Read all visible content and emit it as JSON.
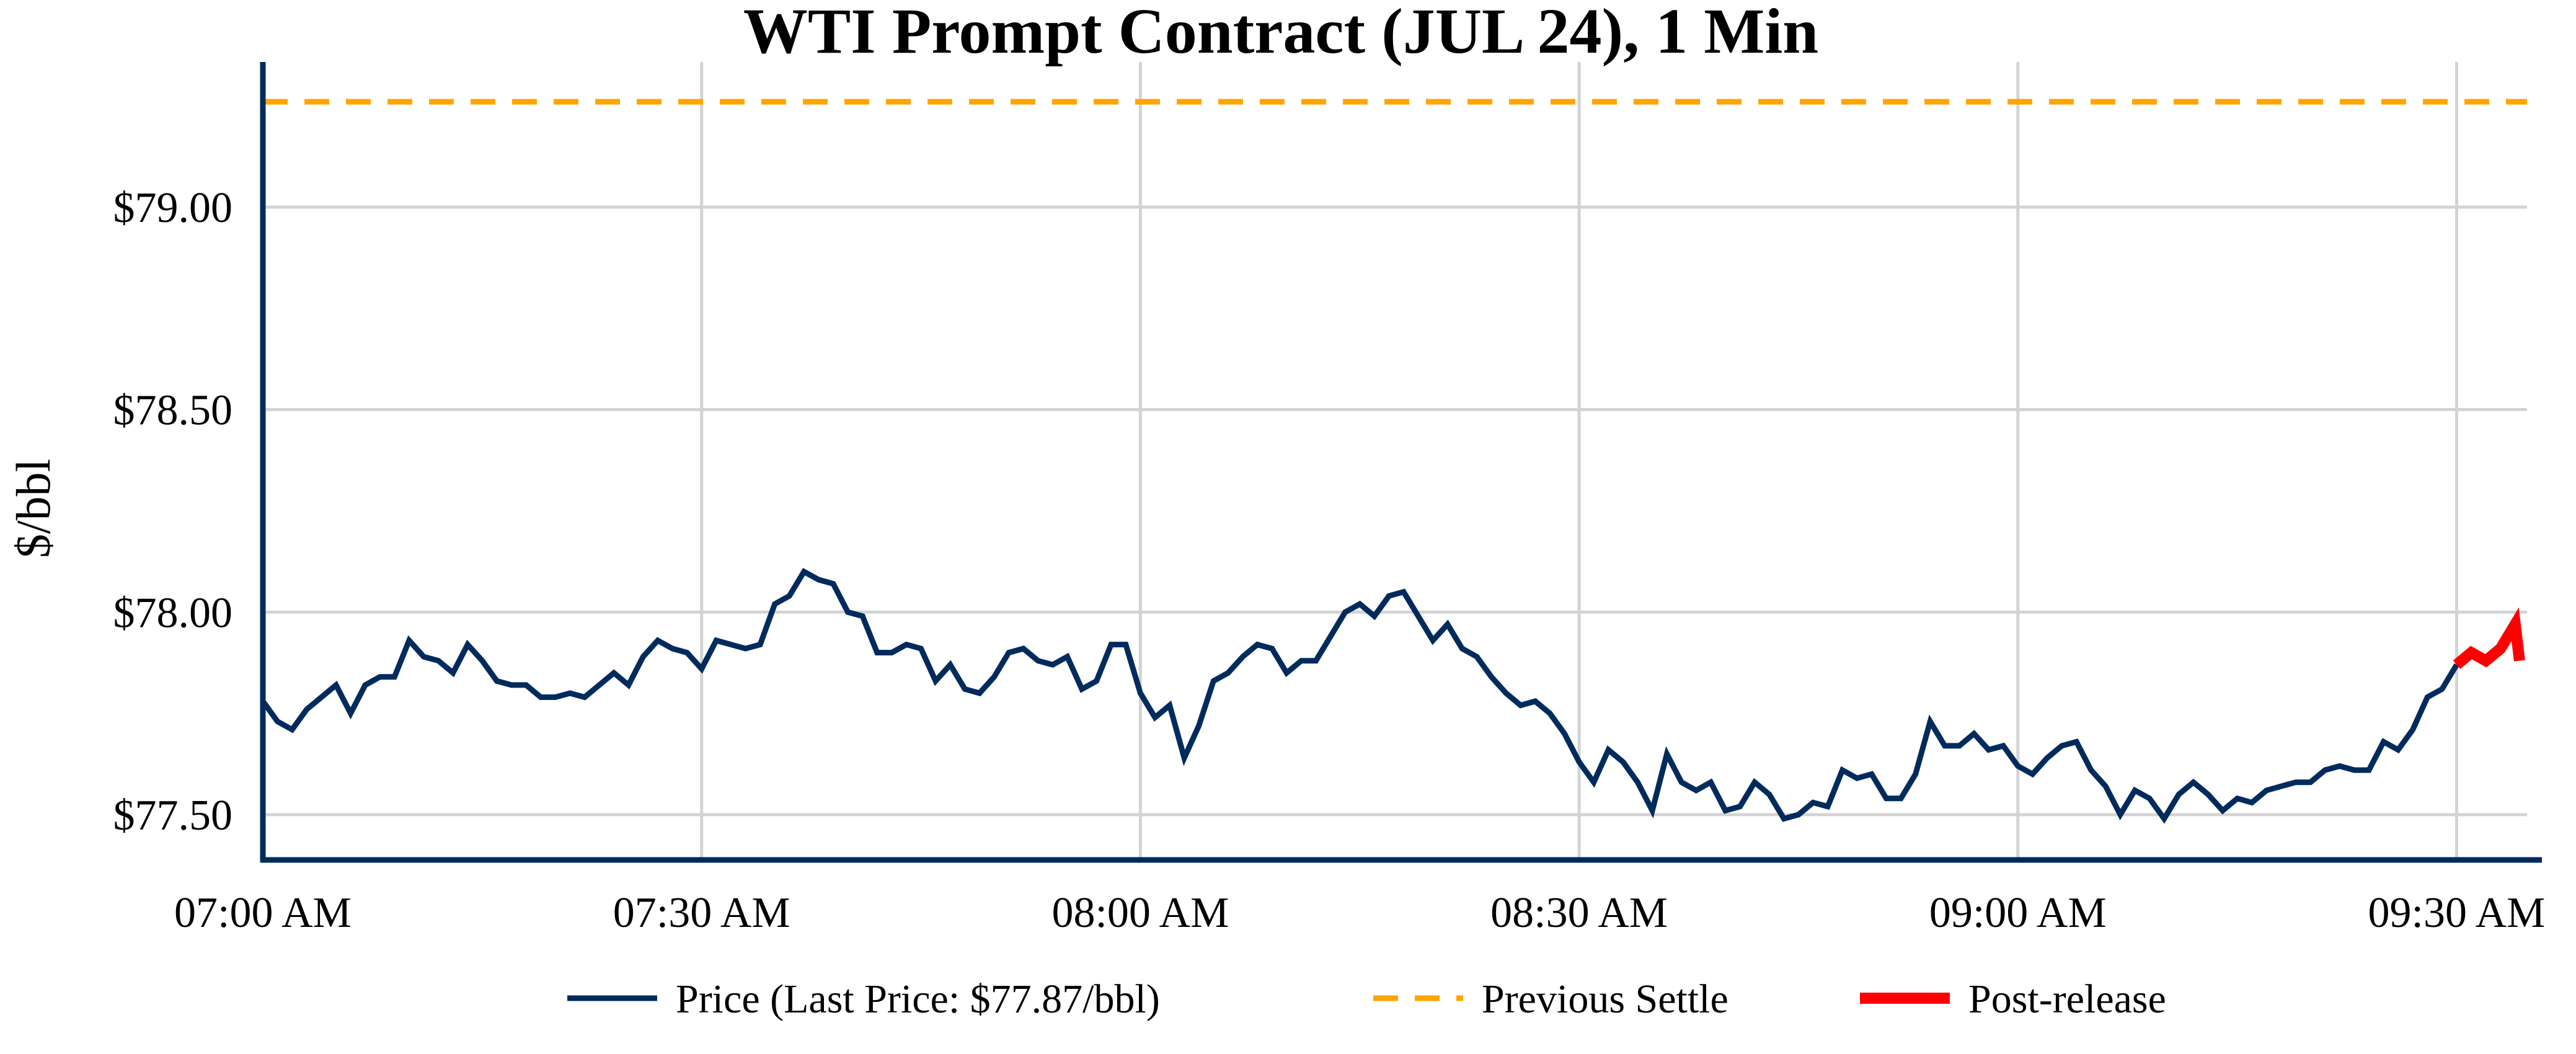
{
  "chart_data": {
    "type": "line",
    "title": "WTI Prompt Contract (JUL 24), 1 Min",
    "xlabel": "",
    "ylabel": "$/bbl",
    "ylim": [
      77.39,
      79.35
    ],
    "xlim_minutes_from_start": [
      0,
      154.3
    ],
    "grid": true,
    "legend_position": "bottom",
    "x_ticks": [
      {
        "label": "07:00 AM",
        "minute": 0
      },
      {
        "label": "07:30 AM",
        "minute": 30
      },
      {
        "label": "08:00 AM",
        "minute": 60
      },
      {
        "label": "08:30 AM",
        "minute": 90
      },
      {
        "label": "09:00 AM",
        "minute": 120
      },
      {
        "label": "09:30 AM",
        "minute": 150
      }
    ],
    "y_ticks": [
      {
        "label": "$77.50",
        "value": 77.5
      },
      {
        "label": "$78.00",
        "value": 78.0
      },
      {
        "label": "$78.50",
        "value": 78.5
      },
      {
        "label": "$79.00",
        "value": 79.0
      }
    ],
    "series": [
      {
        "name": "Price (Last Price: $77.87/bbl)",
        "color": "#002b5c",
        "style": "solid",
        "start_minute": 0,
        "interval_minutes": 1,
        "values": [
          77.78,
          77.73,
          77.71,
          77.76,
          77.79,
          77.82,
          77.75,
          77.82,
          77.84,
          77.84,
          77.93,
          77.89,
          77.88,
          77.85,
          77.92,
          77.88,
          77.83,
          77.82,
          77.82,
          77.79,
          77.79,
          77.8,
          77.79,
          77.82,
          77.85,
          77.82,
          77.89,
          77.93,
          77.91,
          77.9,
          77.86,
          77.93,
          77.92,
          77.91,
          77.92,
          78.02,
          78.04,
          78.1,
          78.08,
          78.07,
          78.0,
          77.99,
          77.9,
          77.9,
          77.92,
          77.91,
          77.83,
          77.87,
          77.81,
          77.8,
          77.84,
          77.9,
          77.91,
          77.88,
          77.87,
          77.89,
          77.81,
          77.83,
          77.92,
          77.92,
          77.8,
          77.74,
          77.77,
          77.64,
          77.72,
          77.83,
          77.85,
          77.89,
          77.92,
          77.91,
          77.85,
          77.88,
          77.88,
          77.94,
          78.0,
          78.02,
          77.99,
          78.04,
          78.05,
          77.99,
          77.93,
          77.97,
          77.91,
          77.89,
          77.84,
          77.8,
          77.77,
          77.78,
          77.75,
          77.7,
          77.63,
          77.58,
          77.66,
          77.63,
          77.58,
          77.51,
          77.65,
          77.58,
          77.56,
          77.58,
          77.51,
          77.52,
          77.58,
          77.55,
          77.49,
          77.5,
          77.53,
          77.52,
          77.61,
          77.59,
          77.6,
          77.54,
          77.54,
          77.6,
          77.73,
          77.67,
          77.67,
          77.7,
          77.66,
          77.67,
          77.62,
          77.6,
          77.64,
          77.67,
          77.68,
          77.61,
          77.57,
          77.5,
          77.56,
          77.54,
          77.49,
          77.55,
          77.58,
          77.55,
          77.51,
          77.54,
          77.53,
          77.56,
          77.57,
          77.58,
          77.58,
          77.61,
          77.62,
          77.61,
          77.61,
          77.68,
          77.66,
          77.71,
          77.79,
          77.81,
          77.87
        ]
      },
      {
        "name": "Previous Settle",
        "color": "#ffa500",
        "style": "dashed",
        "value": 79.26
      },
      {
        "name": "Post-release",
        "color": "#ff0000",
        "style": "solid-thick",
        "minutes": [
          150,
          151,
          152,
          153,
          154,
          154.3
        ],
        "values": [
          77.87,
          77.9,
          77.88,
          77.91,
          77.97,
          77.88
        ]
      }
    ]
  }
}
